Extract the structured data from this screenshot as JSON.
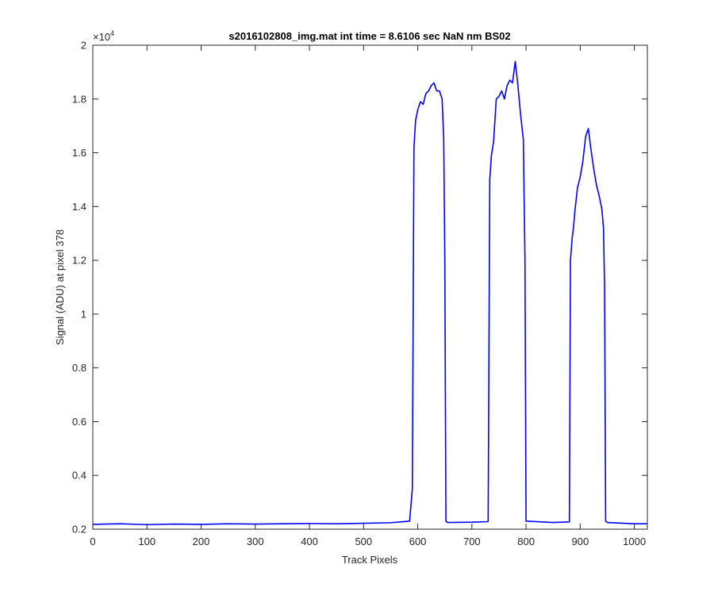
{
  "chart_data": {
    "type": "line",
    "title": "s2016102808_img.mat int time = 8.6106 sec  NaN nm BS02",
    "xlabel": "Track Pixels",
    "ylabel": "Signal (ADU) at pixel 378",
    "y_exponent_label": "×10",
    "y_exponent_power": "4",
    "xlim": [
      0,
      1024
    ],
    "ylim": [
      2000,
      20000
    ],
    "x_ticks": [
      0,
      100,
      200,
      300,
      400,
      500,
      600,
      700,
      800,
      900,
      1000
    ],
    "x_tick_labels": [
      "0",
      "100",
      "200",
      "300",
      "400",
      "500",
      "600",
      "700",
      "800",
      "900",
      "1000"
    ],
    "y_ticks": [
      2000,
      4000,
      6000,
      8000,
      10000,
      12000,
      14000,
      16000,
      18000,
      20000
    ],
    "y_tick_labels": [
      "0.2",
      "0.4",
      "0.6",
      "0.8",
      "1",
      "1.2",
      "1.4",
      "1.6",
      "1.8",
      "2"
    ],
    "grid": false,
    "series": [
      {
        "color": "#0000ff",
        "x": [
          0,
          50,
          100,
          150,
          200,
          250,
          300,
          350,
          400,
          450,
          500,
          550,
          585,
          590,
          593,
          596,
          600,
          605,
          610,
          615,
          620,
          625,
          630,
          635,
          640,
          645,
          648,
          650,
          652,
          655,
          700,
          730,
          733,
          736,
          740,
          745,
          750,
          755,
          760,
          765,
          770,
          775,
          780,
          785,
          790,
          795,
          798,
          800,
          850,
          880,
          882,
          885,
          888,
          890,
          895,
          900,
          905,
          910,
          915,
          920,
          925,
          930,
          935,
          940,
          943,
          945,
          947,
          950,
          1000,
          1024
        ],
        "y": [
          2180,
          2200,
          2170,
          2190,
          2180,
          2200,
          2190,
          2200,
          2210,
          2200,
          2220,
          2240,
          2300,
          3500,
          16200,
          17200,
          17600,
          17900,
          17800,
          18200,
          18300,
          18500,
          18600,
          18300,
          18300,
          18000,
          16500,
          12000,
          2300,
          2250,
          2260,
          2280,
          15000,
          15900,
          16400,
          18000,
          18100,
          18300,
          18000,
          18500,
          18700,
          18600,
          19400,
          18500,
          17400,
          16500,
          12000,
          2300,
          2250,
          2270,
          12000,
          12800,
          13300,
          13800,
          14700,
          15100,
          15700,
          16600,
          16900,
          16100,
          15400,
          14800,
          14400,
          13900,
          13200,
          11000,
          2300,
          2250,
          2200,
          2200
        ]
      }
    ]
  }
}
